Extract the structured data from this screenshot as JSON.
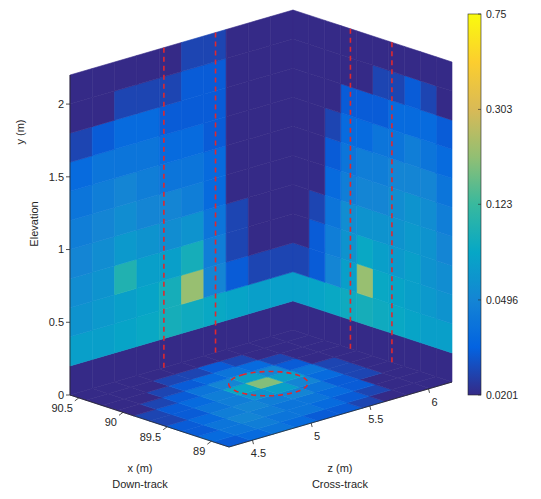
{
  "chart_data": {
    "type": "volume_slices",
    "xlabel": [
      "x (m)",
      "Down-track"
    ],
    "ylabel": [
      "y (m)",
      "Elevation"
    ],
    "zlabel": [
      "z (m)",
      "Cross-track"
    ],
    "xlim": [
      88.8,
      90.6
    ],
    "xticks": [
      89,
      89.5,
      90,
      90.5
    ],
    "ylim": [
      0,
      2.2
    ],
    "yticks": [
      0,
      0.5,
      1,
      1.5,
      2
    ],
    "zlim": [
      4.3,
      6.2
    ],
    "zticks": [
      4.5,
      5,
      5.5,
      6
    ],
    "colorbar": {
      "log": true,
      "range": [
        0.0201,
        0.75
      ],
      "ticks": [
        0.0201,
        0.0496,
        0.123,
        0.303,
        0.75
      ]
    },
    "wall_at_x_max": {
      "values": [
        [
          0.0201,
          0.0201,
          0.0201,
          0.0201,
          0.0201,
          0.0201,
          0.0201,
          0.0201,
          0.0201,
          0.0201
        ],
        [
          0.07,
          0.07,
          0.075,
          0.08,
          0.09,
          0.085,
          0.08,
          0.075,
          0.07,
          0.07
        ],
        [
          0.06,
          0.065,
          0.07,
          0.075,
          0.09,
          0.2,
          0.05,
          0.03,
          0.025,
          0.025
        ],
        [
          0.055,
          0.06,
          0.1,
          0.07,
          0.07,
          0.09,
          0.045,
          0.025,
          0.0201,
          0.0201
        ],
        [
          0.05,
          0.055,
          0.065,
          0.06,
          0.055,
          0.06,
          0.04,
          0.025,
          0.0201,
          0.0201
        ],
        [
          0.045,
          0.05,
          0.055,
          0.05,
          0.05,
          0.045,
          0.035,
          0.0201,
          0.0201,
          0.0201
        ],
        [
          0.04,
          0.045,
          0.05,
          0.045,
          0.04,
          0.04,
          0.035,
          0.0201,
          0.0201,
          0.0201
        ],
        [
          0.035,
          0.04,
          0.04,
          0.04,
          0.035,
          0.035,
          0.03,
          0.0201,
          0.0201,
          0.0201
        ],
        [
          0.025,
          0.03,
          0.035,
          0.035,
          0.03,
          0.03,
          0.03,
          0.0201,
          0.0201,
          0.0201
        ],
        [
          0.0201,
          0.0201,
          0.025,
          0.025,
          0.025,
          0.03,
          0.03,
          0.0201,
          0.0201,
          0.0201
        ],
        [
          0.0201,
          0.0201,
          0.0201,
          0.0201,
          0.0201,
          0.025,
          0.025,
          0.0201,
          0.0201,
          0.0201
        ]
      ]
    },
    "wall_at_z_max": {
      "values": [
        [
          0.0201,
          0.0201,
          0.0201,
          0.0201,
          0.0201,
          0.0201,
          0.0201,
          0.0201,
          0.0201,
          0.0201
        ],
        [
          0.07,
          0.07,
          0.075,
          0.08,
          0.085,
          0.09,
          0.085,
          0.08,
          0.075,
          0.07
        ],
        [
          0.06,
          0.065,
          0.07,
          0.075,
          0.08,
          0.2,
          0.07,
          0.05,
          0.03,
          0.025
        ],
        [
          0.055,
          0.06,
          0.07,
          0.065,
          0.07,
          0.08,
          0.06,
          0.045,
          0.03,
          0.0201
        ],
        [
          0.05,
          0.06,
          0.065,
          0.06,
          0.06,
          0.06,
          0.055,
          0.04,
          0.025,
          0.0201
        ],
        [
          0.045,
          0.055,
          0.06,
          0.055,
          0.05,
          0.05,
          0.045,
          0.035,
          0.0201,
          0.0201
        ],
        [
          0.04,
          0.05,
          0.05,
          0.05,
          0.045,
          0.045,
          0.04,
          0.03,
          0.0201,
          0.0201
        ],
        [
          0.035,
          0.04,
          0.045,
          0.04,
          0.04,
          0.035,
          0.035,
          0.025,
          0.0201,
          0.0201
        ],
        [
          0.03,
          0.035,
          0.035,
          0.035,
          0.03,
          0.03,
          0.03,
          0.0201,
          0.0201,
          0.0201
        ],
        [
          0.0201,
          0.025,
          0.03,
          0.025,
          0.025,
          0.0201,
          0.0201,
          0.0201,
          0.0201,
          0.0201
        ],
        [
          0.0201,
          0.0201,
          0.0201,
          0.0201,
          0.0201,
          0.0201,
          0.0201,
          0.0201,
          0.0201,
          0.0201
        ]
      ]
    },
    "floor": {
      "values": [
        [
          0.03,
          0.035,
          0.04,
          0.035,
          0.03,
          0.03,
          0.025,
          0.0201,
          0.0201,
          0.0201
        ],
        [
          0.035,
          0.04,
          0.045,
          0.04,
          0.04,
          0.035,
          0.03,
          0.025,
          0.0201,
          0.0201
        ],
        [
          0.03,
          0.04,
          0.05,
          0.045,
          0.04,
          0.04,
          0.035,
          0.03,
          0.0201,
          0.0201
        ],
        [
          0.03,
          0.035,
          0.045,
          0.05,
          0.045,
          0.05,
          0.04,
          0.03,
          0.025,
          0.0201
        ],
        [
          0.025,
          0.03,
          0.04,
          0.045,
          0.06,
          0.07,
          0.05,
          0.035,
          0.025,
          0.0201
        ],
        [
          0.025,
          0.03,
          0.035,
          0.045,
          0.08,
          0.18,
          0.07,
          0.04,
          0.025,
          0.0201
        ],
        [
          0.0201,
          0.025,
          0.03,
          0.04,
          0.05,
          0.07,
          0.05,
          0.03,
          0.0201,
          0.0201
        ],
        [
          0.0201,
          0.0201,
          0.025,
          0.03,
          0.035,
          0.04,
          0.035,
          0.025,
          0.0201,
          0.0201
        ],
        [
          0.0201,
          0.0201,
          0.0201,
          0.025,
          0.025,
          0.03,
          0.025,
          0.0201,
          0.0201,
          0.0201
        ],
        [
          0.0201,
          0.0201,
          0.0201,
          0.0201,
          0.0201,
          0.0201,
          0.0201,
          0.0201,
          0.0201,
          0.0201
        ]
      ]
    },
    "wall_x_max_lines": {
      "z": [
        5.1,
        5.54
      ],
      "color": "#e0282e",
      "line_style": "dashed"
    },
    "wall_z_max_lines": {
      "x": [
        89.95,
        89.48
      ],
      "color": "#e0282e",
      "line_style": "dashed"
    },
    "floor_ellipse": {
      "x": 89.75,
      "z": 5.35,
      "x_radius": 0.3,
      "z_radius": 0.25,
      "color": "#e0282e",
      "line_style": "dashed"
    }
  }
}
